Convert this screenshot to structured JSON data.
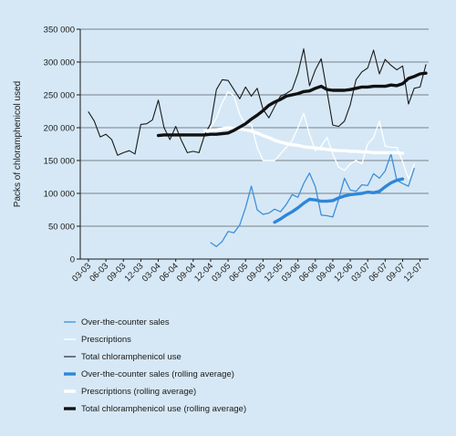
{
  "chart_data": {
    "type": "line",
    "ylabel": "Packs of chloramphenicol used",
    "xlabel": "",
    "title": "",
    "ylim": [
      0,
      350000
    ],
    "y_ticks": [
      0,
      50000,
      100000,
      150000,
      200000,
      250000,
      300000,
      350000
    ],
    "y_tick_labels": [
      "0",
      "50 000",
      "100 000",
      "150 000",
      "200 000",
      "250 000",
      "300 000",
      "350 000"
    ],
    "x_tick_labels": [
      "03-03",
      "06-03",
      "09-03",
      "12-03",
      "03-04",
      "06-04",
      "09-04",
      "12-04",
      "03-05",
      "06-05",
      "09-05",
      "12-05",
      "03-06",
      "06-06",
      "09-06",
      "12-06",
      "03-07",
      "06-07",
      "09-07",
      "12-07"
    ],
    "grid": "horizontal",
    "legend_placement": "below",
    "series": [
      {
        "name": "Over-the-counter sales",
        "color": "#3f8fd8",
        "width": 1.3,
        "start_month": 21,
        "values": [
          25000,
          19000,
          27000,
          42000,
          40000,
          52000,
          78000,
          111000,
          75000,
          68000,
          70000,
          76000,
          72000,
          83000,
          98000,
          94000,
          115000,
          131000,
          110000,
          67000,
          66000,
          64000,
          91000,
          123000,
          105000,
          103000,
          113000,
          112000,
          130000,
          123000,
          134000,
          160000,
          120000,
          115000,
          111000,
          138000
        ]
      },
      {
        "name": "Prescriptions",
        "color": "#ffffff",
        "width": 1.3,
        "start_month": 21,
        "values": [
          200000,
          215000,
          238000,
          255000,
          248000,
          220000,
          205000,
          205000,
          170000,
          150000,
          150000,
          150000,
          160000,
          170000,
          180000,
          200000,
          222000,
          190000,
          165000,
          172000,
          185000,
          160000,
          140000,
          135000,
          145000,
          150000,
          145000,
          175000,
          185000,
          210000,
          172000,
          170000,
          170000,
          148000,
          122000,
          145000
        ]
      },
      {
        "name": "Total chloramphenicol use",
        "color": "#1a1a1a",
        "width": 1.1,
        "start_month": 0,
        "values": [
          224000,
          210000,
          186000,
          190000,
          182000,
          158000,
          162000,
          165000,
          160000,
          205000,
          206000,
          212000,
          242000,
          200000,
          182000,
          202000,
          180000,
          162000,
          164000,
          162000,
          190000,
          206000,
          258000,
          273000,
          272000,
          258000,
          244000,
          262000,
          248000,
          260000,
          228000,
          215000,
          232000,
          248000,
          252000,
          258000,
          283000,
          320000,
          264000,
          288000,
          305000,
          255000,
          204000,
          202000,
          210000,
          235000,
          273000,
          285000,
          291000,
          318000,
          282000,
          304000,
          295000,
          288000,
          294000,
          236000,
          260000,
          262000,
          296000
        ]
      },
      {
        "name": "Over-the-counter sales (rolling average)",
        "color": "#2f86d8",
        "width": 3.4,
        "start_month": 32,
        "values": [
          56000,
          61000,
          67000,
          72000,
          78000,
          85000,
          91000,
          90000,
          88000,
          88000,
          89000,
          93000,
          96000,
          98000,
          99000,
          100000,
          102000,
          101000,
          103000,
          110000,
          116000,
          120000,
          122000
        ]
      },
      {
        "name": "Prescriptions (rolling average)",
        "color": "#ffffff",
        "width": 3.4,
        "start_month": 20,
        "values": [
          195000,
          196000,
          197000,
          198000,
          200000,
          199000,
          198000,
          197000,
          195000,
          192000,
          188000,
          185000,
          181000,
          178000,
          176000,
          174000,
          173000,
          171000,
          170000,
          169000,
          168000,
          167000,
          166000,
          165000,
          165000,
          164000,
          164000,
          163000,
          163000,
          162000,
          162000,
          162000,
          162000,
          162000,
          161000
        ]
      },
      {
        "name": "Total chloramphenicol use (rolling average)",
        "color": "#111111",
        "width": 3.4,
        "start_month": 12,
        "values": [
          188000,
          189000,
          189000,
          189000,
          189000,
          189000,
          189000,
          189000,
          189000,
          190000,
          190000,
          191000,
          192000,
          196000,
          201000,
          206000,
          213000,
          219000,
          226000,
          234000,
          239000,
          243000,
          248000,
          250000,
          252000,
          255000,
          256000,
          260000,
          263000,
          258000,
          257000,
          257000,
          257000,
          258000,
          260000,
          262000,
          262000,
          263000,
          263000,
          263000,
          265000,
          264000,
          267000,
          275000,
          278000,
          282000,
          283000
        ]
      }
    ]
  }
}
